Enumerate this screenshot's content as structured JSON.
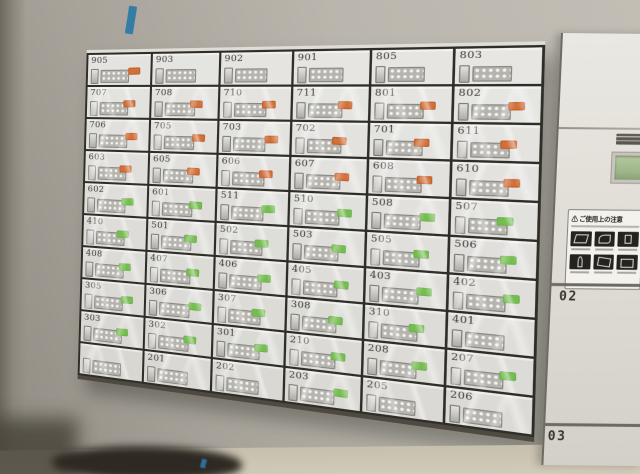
{
  "mailbox_grid": {
    "rows": [
      [
        "905",
        "903",
        "902",
        "901",
        "805",
        "803"
      ],
      [
        "707",
        "708",
        "710",
        "711",
        "801",
        "802"
      ],
      [
        "706",
        "705",
        "703",
        "702",
        "701",
        "611"
      ],
      [
        "603",
        "605",
        "606",
        "607",
        "608",
        "610"
      ],
      [
        "602",
        "601",
        "511",
        "510",
        "508",
        "507"
      ],
      [
        "410",
        "501",
        "502",
        "503",
        "505",
        "506"
      ],
      [
        "408",
        "407",
        "406",
        "405",
        "403",
        "402"
      ],
      [
        "305",
        "306",
        "307",
        "308",
        "310",
        "401"
      ],
      [
        "303",
        "302",
        "301",
        "210",
        "208",
        "207"
      ],
      [
        "",
        "201",
        "202",
        "203",
        "205",
        "206"
      ]
    ],
    "stickers": [
      [
        "orange",
        "",
        "",
        "",
        "",
        ""
      ],
      [
        "orange",
        "orange",
        "orange",
        "orange",
        "orange",
        "orange"
      ],
      [
        "orange",
        "orange",
        "orange",
        "orange",
        "orange",
        "orange"
      ],
      [
        "orange",
        "orange",
        "orange",
        "orange",
        "orange",
        "orange"
      ],
      [
        "green",
        "green",
        "green",
        "green",
        "green",
        "green"
      ],
      [
        "green",
        "green",
        "green",
        "green",
        "green",
        "green"
      ],
      [
        "green",
        "green",
        "green",
        "green",
        "green",
        "green"
      ],
      [
        "green",
        "green",
        "green",
        "green",
        "green",
        ""
      ],
      [
        "green",
        "green",
        "green",
        "green",
        "green",
        "green"
      ],
      [
        "",
        "",
        "",
        "green",
        "",
        ""
      ]
    ],
    "lock": {
      "style": "push-button combination",
      "button_rows": 2,
      "button_columns": 5
    }
  },
  "side_unit": {
    "door_labels": [
      "02",
      "03"
    ],
    "notice": {
      "warning_symbol": "⚠",
      "title": "ご使用上の注意"
    },
    "pictogram_count": 6
  },
  "colors": {
    "sticker_orange": "#d2703a",
    "sticker_green": "#74bd50",
    "door_face": "#d8d7d2",
    "seam": "#2f2d28",
    "lcd_green": "#9db388",
    "tape_blue": "#2a7aa5"
  }
}
